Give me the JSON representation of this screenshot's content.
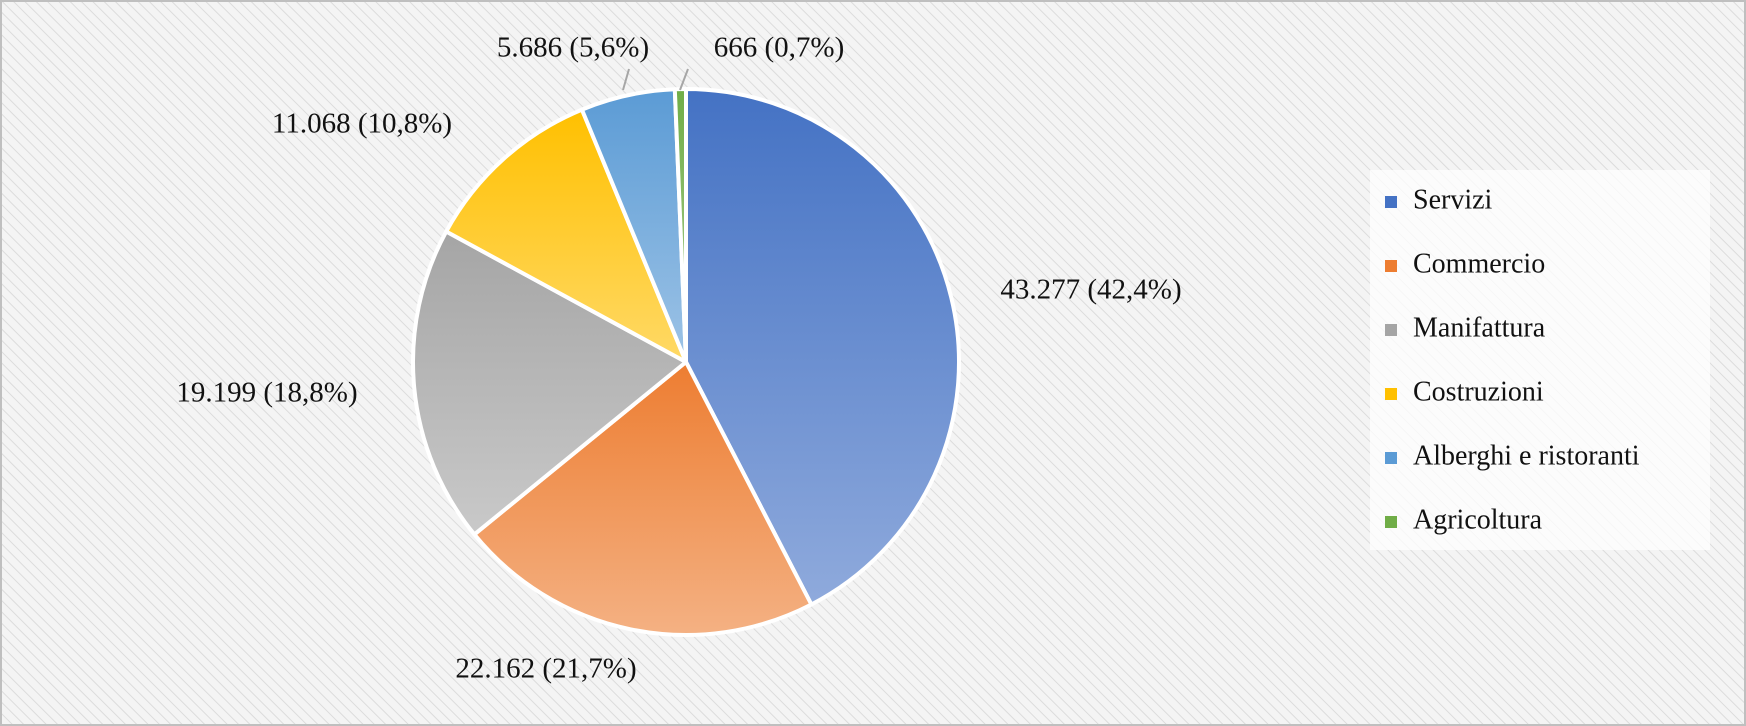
{
  "chart_data": {
    "type": "pie",
    "categories": [
      "Servizi",
      "Commercio",
      "Manifattura",
      "Costruzioni",
      "Alberghi e ristoranti",
      "Agricoltura"
    ],
    "values": [
      43277,
      22162,
      19199,
      11068,
      5686,
      666
    ],
    "value_labels": [
      "43.277 (42,4%)",
      "22.162 (21,7%)",
      "19.199 (18,8%)",
      "11.068 (10,8%)",
      "5.686 (5,6%)",
      "666 (0,7%)"
    ],
    "colors": [
      "#4472c4",
      "#ed7d31",
      "#a5a5a5",
      "#ffc000",
      "#5b9bd5",
      "#70ad47"
    ],
    "legend": "right"
  }
}
